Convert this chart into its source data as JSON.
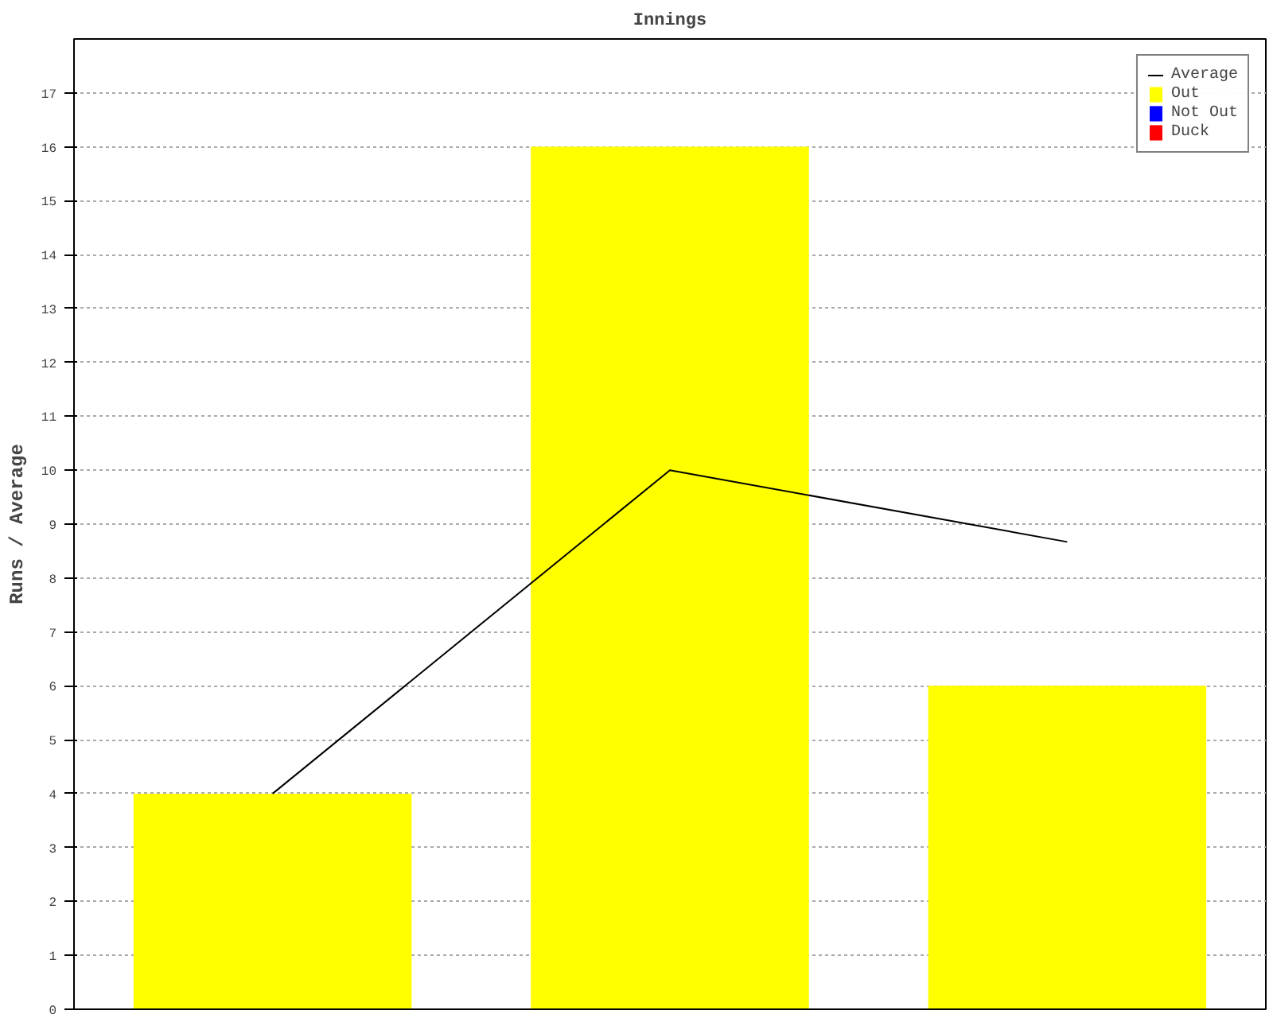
{
  "chart_data": {
    "type": "bar",
    "title": "Innings",
    "ylabel": "Runs / Average",
    "categories": [
      null,
      null,
      null
    ],
    "series": [
      {
        "name": "Average",
        "type": "line",
        "color": "#000000",
        "values": [
          4,
          10,
          8.67
        ]
      },
      {
        "name": "Out",
        "color": "#ffff00",
        "values": [
          4,
          16,
          6
        ]
      },
      {
        "name": "Not Out",
        "color": "#0000ff",
        "values": [
          null,
          null,
          null
        ]
      },
      {
        "name": "Duck",
        "color": "#ff0000",
        "values": [
          null,
          null,
          null
        ]
      }
    ],
    "ylim": [
      0,
      18
    ],
    "yticks": [
      0,
      1,
      2,
      3,
      4,
      5,
      6,
      7,
      8,
      9,
      10,
      11,
      12,
      13,
      14,
      15,
      16,
      17
    ],
    "grid": "y",
    "legend": "top right"
  }
}
